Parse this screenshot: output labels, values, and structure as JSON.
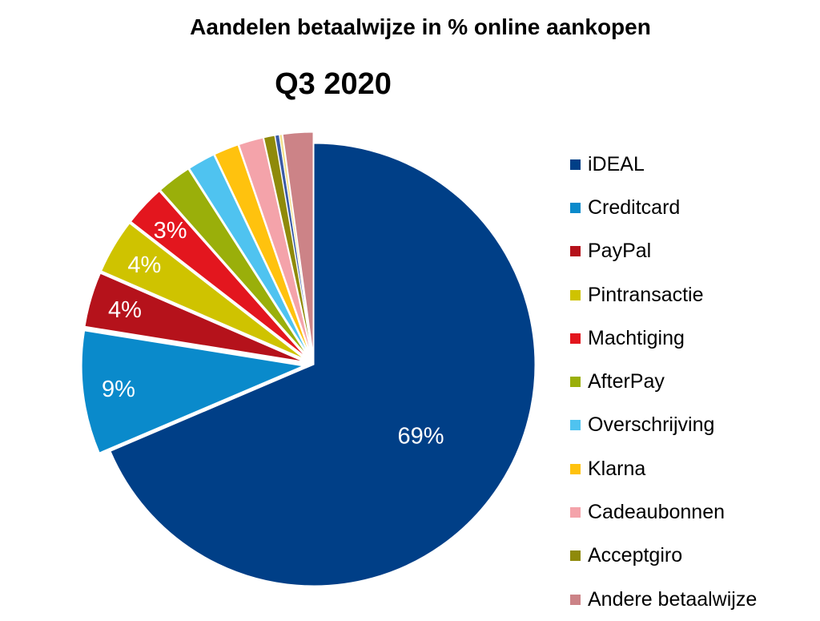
{
  "chart_data": {
    "type": "pie",
    "title": "Aandelen betaalwijze in % online aankopen",
    "subtitle": "Q3 2020",
    "unit": "%",
    "slices": [
      {
        "name": "iDEAL",
        "value": 69,
        "label": "69%",
        "color": "#003F87"
      },
      {
        "name": "Creditcard",
        "value": 9,
        "label": "9%",
        "color": "#0A8ACB"
      },
      {
        "name": "PayPal",
        "value": 4,
        "label": "4%",
        "color": "#B5121B"
      },
      {
        "name": "Pintransactie",
        "value": 4,
        "label": "4%",
        "color": "#CFC300"
      },
      {
        "name": "Machtiging",
        "value": 3,
        "label": "3%",
        "color": "#E3161E"
      },
      {
        "name": "AfterPay",
        "value": 2.5,
        "label": "",
        "color": "#9AAF0A"
      },
      {
        "name": "Overschrijving",
        "value": 2,
        "label": "",
        "color": "#4FC3F0"
      },
      {
        "name": "Klarna",
        "value": 1.8,
        "label": "",
        "color": "#FFC20E"
      },
      {
        "name": "Cadeaubonnen",
        "value": 1.8,
        "label": "",
        "color": "#F4A3AA"
      },
      {
        "name": "Acceptgiro",
        "value": 0.8,
        "label": "",
        "color": "#8F8A0A"
      },
      {
        "name": "",
        "value": 0.3,
        "label": "",
        "color": "#3A5BA6"
      },
      {
        "name": "",
        "value": 0.2,
        "label": "",
        "color": "#F2E08A"
      },
      {
        "name": "Andere betaalwijze",
        "value": 2.2,
        "label": "",
        "color": "#CC8387"
      }
    ]
  }
}
